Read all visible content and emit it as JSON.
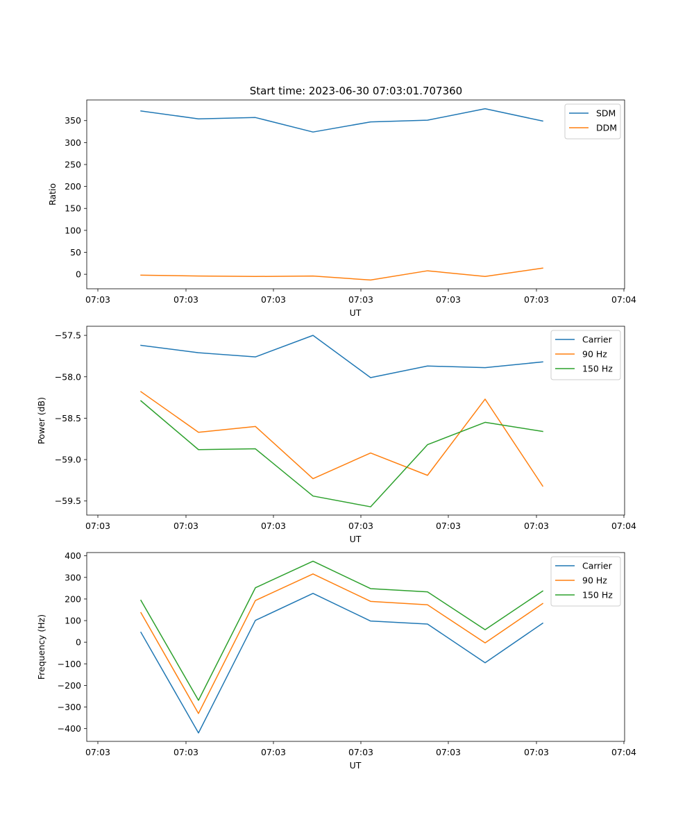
{
  "figure_title": "Start time: 2023-06-30 07:03:01.707360",
  "colors": {
    "c0": "#1f77b4",
    "c1": "#ff7f0e",
    "c2": "#2ca02c"
  },
  "chart_data": [
    {
      "type": "line",
      "title": "Start time: 2023-06-30 07:03:01.707360",
      "xlabel": "UT",
      "ylabel": "Ratio",
      "x_tick_labels": [
        "07:03",
        "07:03",
        "07:03",
        "07:03",
        "07:03",
        "07:03",
        "07:04"
      ],
      "y_ticks": [
        0,
        50,
        100,
        150,
        200,
        250,
        300,
        350
      ],
      "y_tick_labels": [
        "0",
        "50",
        "100",
        "150",
        "200",
        "250",
        "300",
        "350"
      ],
      "ylim": [
        -33,
        397
      ],
      "legend": "top-right",
      "series": [
        {
          "name": "SDM",
          "color": "#1f77b4",
          "values": [
            372,
            354,
            357,
            324,
            347,
            351,
            377,
            349
          ]
        },
        {
          "name": "DDM",
          "color": "#ff7f0e",
          "values": [
            -2,
            -4,
            -5,
            -4,
            -13,
            8,
            -5,
            14
          ]
        }
      ]
    },
    {
      "type": "line",
      "xlabel": "UT",
      "ylabel": "Power (dB)",
      "x_tick_labels": [
        "07:03",
        "07:03",
        "07:03",
        "07:03",
        "07:03",
        "07:03",
        "07:04"
      ],
      "y_ticks": [
        -59.5,
        -59.0,
        -58.5,
        -58.0,
        -57.5
      ],
      "y_tick_labels": [
        "−59.5",
        "−59.0",
        "−58.5",
        "−58.0",
        "−57.5"
      ],
      "ylim": [
        -59.67,
        -57.39
      ],
      "legend": "top-right",
      "series": [
        {
          "name": "Carrier",
          "color": "#1f77b4",
          "values": [
            -57.62,
            -57.71,
            -57.76,
            -57.5,
            -58.01,
            -57.87,
            -57.89,
            -57.82
          ]
        },
        {
          "name": "90 Hz",
          "color": "#ff7f0e",
          "values": [
            -58.18,
            -58.67,
            -58.6,
            -59.23,
            -58.92,
            -59.19,
            -58.27,
            -59.32
          ]
        },
        {
          "name": "150 Hz",
          "color": "#2ca02c",
          "values": [
            -58.29,
            -58.88,
            -58.87,
            -59.44,
            -59.57,
            -58.82,
            -58.55,
            -58.66
          ]
        }
      ]
    },
    {
      "type": "line",
      "xlabel": "UT",
      "ylabel": "Frequency (Hz)",
      "x_tick_labels": [
        "07:03",
        "07:03",
        "07:03",
        "07:03",
        "07:03",
        "07:03",
        "07:04"
      ],
      "y_ticks": [
        -400,
        -300,
        -200,
        -100,
        0,
        100,
        200,
        300,
        400
      ],
      "y_tick_labels": [
        "−400",
        "−300",
        "−200",
        "−100",
        "0",
        "100",
        "200",
        "300",
        "400"
      ],
      "ylim": [
        -459,
        415
      ],
      "legend": "top-right",
      "series": [
        {
          "name": "Carrier",
          "color": "#1f77b4",
          "values": [
            46,
            -420,
            101,
            226,
            98,
            84,
            -95,
            88
          ]
        },
        {
          "name": "90 Hz",
          "color": "#ff7f0e",
          "values": [
            137,
            -330,
            193,
            316,
            189,
            173,
            -3,
            179
          ]
        },
        {
          "name": "150 Hz",
          "color": "#2ca02c",
          "values": [
            194,
            -269,
            252,
            375,
            248,
            233,
            58,
            237
          ]
        }
      ]
    }
  ]
}
